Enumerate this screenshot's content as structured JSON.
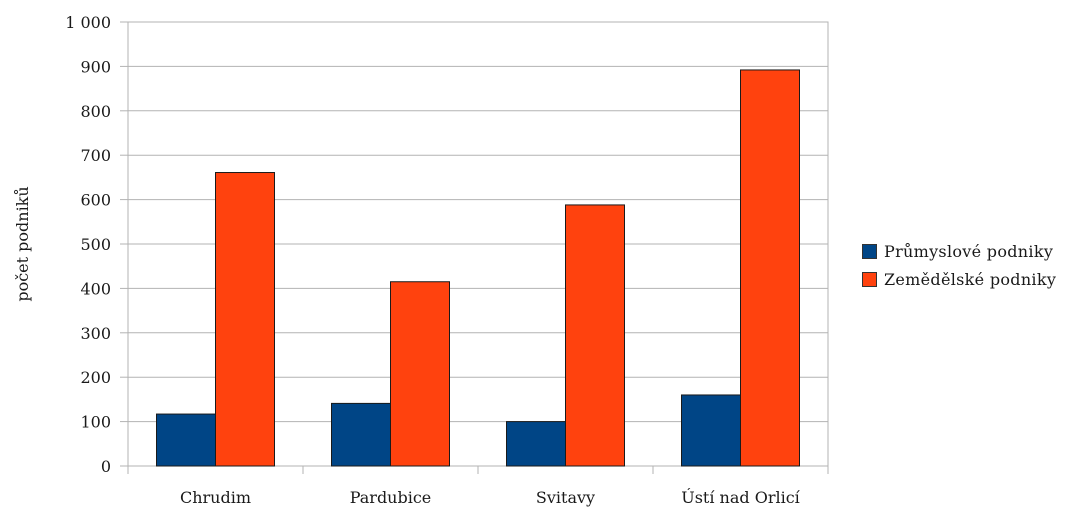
{
  "chart_data": {
    "type": "bar",
    "categories": [
      "Chrudim",
      "Pardubice",
      "Svitavy",
      "Ústí nad Orlicí"
    ],
    "series": [
      {
        "name": "Průmyslové podniky",
        "color": "#004586",
        "values": [
          117,
          141,
          100,
          160
        ]
      },
      {
        "name": "Zemědělské podniky",
        "color": "#ff420e",
        "values": [
          661,
          415,
          588,
          892
        ]
      }
    ],
    "ylabel": "počet podniků",
    "ylim": [
      0,
      1000
    ],
    "yticks": [
      0,
      100,
      200,
      300,
      400,
      500,
      600,
      700,
      800,
      900,
      1000
    ],
    "ytick_labels": [
      "0",
      "100",
      "200",
      "300",
      "400",
      "500",
      "600",
      "700",
      "800",
      "900",
      "1 000"
    ],
    "grid": true,
    "legend_position": "right"
  }
}
